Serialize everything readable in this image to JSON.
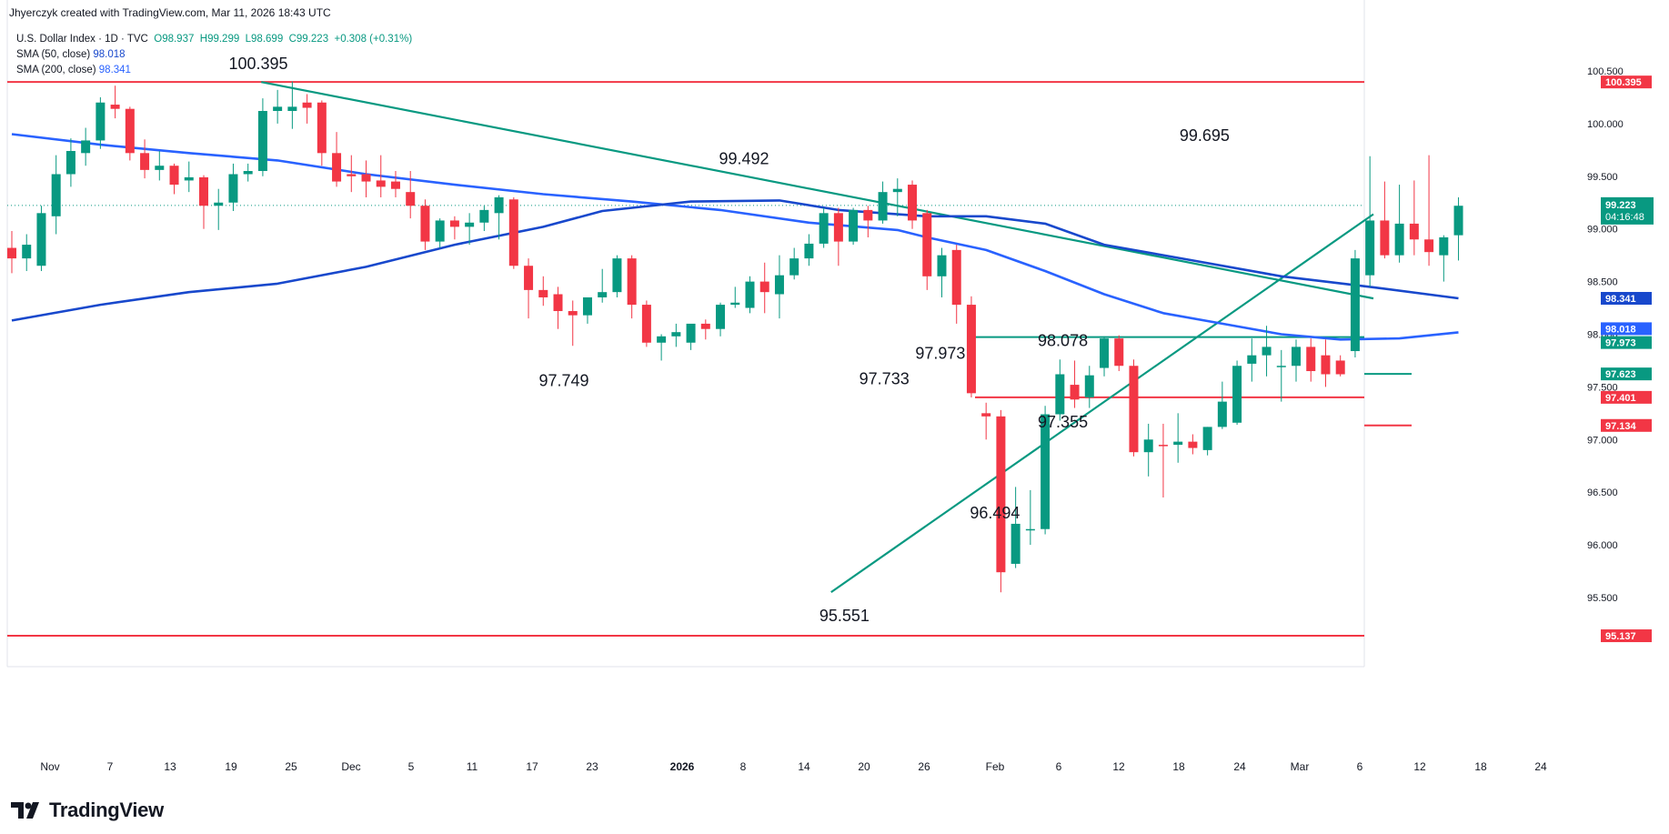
{
  "header": {
    "publish_line": "Jhyerczyk created with TradingView.com, Mar 11, 2026 18:43 UTC"
  },
  "legend": {
    "symbol": "U.S. Dollar Index · 1D · TVC",
    "open": "O98.937",
    "high": "H99.299",
    "low": "L98.699",
    "close": "C99.223",
    "change": "+0.308 (+0.31%)",
    "sma50_label": "SMA (50, close)",
    "sma50_value": "98.018",
    "sma200_label": "SMA (200, close)",
    "sma200_value": "98.341"
  },
  "brand": {
    "name": "TradingView"
  },
  "colors": {
    "up": "#089981",
    "down": "#f23645",
    "sma50": "#2962ff",
    "sma200": "#1848cc",
    "trend": "#089981",
    "resistance": "#f23645"
  },
  "chart_data": {
    "type": "candlestick",
    "title": "",
    "price_axis_ticks": [
      "100.500",
      "100.000",
      "99.500",
      "99.000",
      "98.500",
      "98.000",
      "97.500",
      "97.000",
      "96.500",
      "96.000",
      "95.500"
    ],
    "time_axis_ticks": [
      "Nov",
      "7",
      "13",
      "19",
      "25",
      "Dec",
      "5",
      "11",
      "17",
      "23",
      "2026",
      "8",
      "14",
      "20",
      "26",
      "Feb",
      "6",
      "12",
      "18",
      "24",
      "Mar",
      "6",
      "12",
      "18",
      "24"
    ],
    "last_price": "99.223",
    "countdown": "04:16:48",
    "price_badges": [
      {
        "value": "100.395",
        "color": "#f23645"
      },
      {
        "value": "98.341",
        "color": "#1848cc"
      },
      {
        "value": "98.018",
        "color": "#2962ff"
      },
      {
        "value": "97.973",
        "color": "#089981"
      },
      {
        "value": "97.623",
        "color": "#089981"
      },
      {
        "value": "97.401",
        "color": "#f23645"
      },
      {
        "value": "97.134",
        "color": "#f23645"
      },
      {
        "value": "95.137",
        "color": "#f23645"
      }
    ],
    "annotations": [
      {
        "text": "100.395",
        "value": 100.395
      },
      {
        "text": "99.492",
        "value": 99.492
      },
      {
        "text": "97.749",
        "value": 97.749
      },
      {
        "text": "99.695",
        "value": 99.695
      },
      {
        "text": "97.973",
        "value": 97.973
      },
      {
        "text": "97.733",
        "value": 97.733
      },
      {
        "text": "98.078",
        "value": 98.078
      },
      {
        "text": "97.355",
        "value": 97.355
      },
      {
        "text": "96.494",
        "value": 96.494
      },
      {
        "text": "95.551",
        "value": 95.551
      }
    ],
    "horizontal_levels": [
      {
        "value": 100.395,
        "color": "#f23645"
      },
      {
        "value": 95.137,
        "color": "#f23645"
      },
      {
        "value": 97.973,
        "color": "#089981"
      },
      {
        "value": 97.401,
        "color": "#f23645"
      },
      {
        "value": 97.623,
        "color": "#089981"
      },
      {
        "value": 97.134,
        "color": "#f23645"
      }
    ],
    "candles": [
      {
        "o": 98.82,
        "h": 98.98,
        "l": 98.58,
        "c": 98.72
      },
      {
        "o": 98.72,
        "h": 98.95,
        "l": 98.6,
        "c": 98.85
      },
      {
        "o": 98.65,
        "h": 99.22,
        "l": 98.6,
        "c": 99.15
      },
      {
        "o": 99.12,
        "h": 99.7,
        "l": 98.95,
        "c": 99.52
      },
      {
        "o": 99.52,
        "h": 99.86,
        "l": 99.4,
        "c": 99.74
      },
      {
        "o": 99.72,
        "h": 99.96,
        "l": 99.6,
        "c": 99.84
      },
      {
        "o": 99.84,
        "h": 100.25,
        "l": 99.76,
        "c": 100.2
      },
      {
        "o": 100.18,
        "h": 100.36,
        "l": 100.05,
        "c": 100.14
      },
      {
        "o": 100.14,
        "h": 100.16,
        "l": 99.65,
        "c": 99.72
      },
      {
        "o": 99.72,
        "h": 99.85,
        "l": 99.48,
        "c": 99.56
      },
      {
        "o": 99.56,
        "h": 99.74,
        "l": 99.46,
        "c": 99.6
      },
      {
        "o": 99.6,
        "h": 99.62,
        "l": 99.33,
        "c": 99.42
      },
      {
        "o": 99.46,
        "h": 99.64,
        "l": 99.35,
        "c": 99.49
      },
      {
        "o": 99.49,
        "h": 99.51,
        "l": 99.0,
        "c": 99.22
      },
      {
        "o": 99.22,
        "h": 99.38,
        "l": 98.99,
        "c": 99.25
      },
      {
        "o": 99.25,
        "h": 99.62,
        "l": 99.17,
        "c": 99.52
      },
      {
        "o": 99.52,
        "h": 99.62,
        "l": 99.45,
        "c": 99.55
      },
      {
        "o": 99.55,
        "h": 100.24,
        "l": 99.5,
        "c": 100.12
      },
      {
        "o": 100.12,
        "h": 100.32,
        "l": 100.0,
        "c": 100.16
      },
      {
        "o": 100.12,
        "h": 100.4,
        "l": 99.95,
        "c": 100.16
      },
      {
        "o": 100.2,
        "h": 100.28,
        "l": 100.0,
        "c": 100.15
      },
      {
        "o": 100.2,
        "h": 100.22,
        "l": 99.6,
        "c": 99.72
      },
      {
        "o": 99.72,
        "h": 99.92,
        "l": 99.4,
        "c": 99.45
      },
      {
        "o": 99.52,
        "h": 99.7,
        "l": 99.35,
        "c": 99.5
      },
      {
        "o": 99.52,
        "h": 99.65,
        "l": 99.3,
        "c": 99.45
      },
      {
        "o": 99.46,
        "h": 99.7,
        "l": 99.3,
        "c": 99.4
      },
      {
        "o": 99.45,
        "h": 99.55,
        "l": 99.3,
        "c": 99.38
      },
      {
        "o": 99.35,
        "h": 99.55,
        "l": 99.1,
        "c": 99.22
      },
      {
        "o": 99.22,
        "h": 99.28,
        "l": 98.8,
        "c": 98.88
      },
      {
        "o": 98.88,
        "h": 99.1,
        "l": 98.82,
        "c": 99.08
      },
      {
        "o": 99.08,
        "h": 99.12,
        "l": 98.9,
        "c": 99.02
      },
      {
        "o": 99.02,
        "h": 99.15,
        "l": 98.85,
        "c": 99.06
      },
      {
        "o": 99.06,
        "h": 99.22,
        "l": 98.98,
        "c": 99.18
      },
      {
        "o": 99.15,
        "h": 99.32,
        "l": 98.9,
        "c": 99.3
      },
      {
        "o": 99.28,
        "h": 99.3,
        "l": 98.62,
        "c": 98.65
      },
      {
        "o": 98.65,
        "h": 98.72,
        "l": 98.15,
        "c": 98.42
      },
      {
        "o": 98.42,
        "h": 98.55,
        "l": 98.27,
        "c": 98.35
      },
      {
        "o": 98.38,
        "h": 98.45,
        "l": 98.05,
        "c": 98.22
      },
      {
        "o": 98.22,
        "h": 98.32,
        "l": 97.89,
        "c": 98.18
      },
      {
        "o": 98.18,
        "h": 98.35,
        "l": 98.1,
        "c": 98.35
      },
      {
        "o": 98.35,
        "h": 98.62,
        "l": 98.3,
        "c": 98.4
      },
      {
        "o": 98.4,
        "h": 98.75,
        "l": 98.35,
        "c": 98.72
      },
      {
        "o": 98.72,
        "h": 98.75,
        "l": 98.15,
        "c": 98.28
      },
      {
        "o": 98.28,
        "h": 98.32,
        "l": 97.88,
        "c": 97.92
      },
      {
        "o": 97.92,
        "h": 98.0,
        "l": 97.75,
        "c": 97.98
      },
      {
        "o": 97.98,
        "h": 98.1,
        "l": 97.88,
        "c": 98.02
      },
      {
        "o": 97.92,
        "h": 98.08,
        "l": 97.85,
        "c": 98.1
      },
      {
        "o": 98.1,
        "h": 98.14,
        "l": 97.95,
        "c": 98.05
      },
      {
        "o": 98.05,
        "h": 98.3,
        "l": 97.98,
        "c": 98.28
      },
      {
        "o": 98.28,
        "h": 98.45,
        "l": 98.25,
        "c": 98.3
      },
      {
        "o": 98.25,
        "h": 98.55,
        "l": 98.2,
        "c": 98.5
      },
      {
        "o": 98.5,
        "h": 98.68,
        "l": 98.2,
        "c": 98.4
      },
      {
        "o": 98.38,
        "h": 98.75,
        "l": 98.15,
        "c": 98.56
      },
      {
        "o": 98.56,
        "h": 98.82,
        "l": 98.52,
        "c": 98.72
      },
      {
        "o": 98.72,
        "h": 98.95,
        "l": 98.65,
        "c": 98.86
      },
      {
        "o": 98.86,
        "h": 99.2,
        "l": 98.82,
        "c": 99.15
      },
      {
        "o": 99.15,
        "h": 99.2,
        "l": 98.65,
        "c": 98.88
      },
      {
        "o": 98.88,
        "h": 99.2,
        "l": 98.85,
        "c": 99.18
      },
      {
        "o": 99.18,
        "h": 99.22,
        "l": 98.92,
        "c": 99.08
      },
      {
        "o": 99.08,
        "h": 99.45,
        "l": 99.05,
        "c": 99.35
      },
      {
        "o": 99.35,
        "h": 99.48,
        "l": 99.12,
        "c": 99.38
      },
      {
        "o": 99.42,
        "h": 99.46,
        "l": 99.0,
        "c": 99.08
      },
      {
        "o": 99.15,
        "h": 99.18,
        "l": 98.42,
        "c": 98.55
      },
      {
        "o": 98.55,
        "h": 98.82,
        "l": 98.35,
        "c": 98.75
      },
      {
        "o": 98.8,
        "h": 98.85,
        "l": 98.1,
        "c": 98.28
      },
      {
        "o": 98.28,
        "h": 98.36,
        "l": 97.4,
        "c": 97.44
      },
      {
        "o": 97.25,
        "h": 97.35,
        "l": 97.0,
        "c": 97.22
      },
      {
        "o": 97.22,
        "h": 97.28,
        "l": 95.55,
        "c": 95.74
      },
      {
        "o": 95.82,
        "h": 96.55,
        "l": 95.78,
        "c": 96.2
      },
      {
        "o": 96.15,
        "h": 96.52,
        "l": 96.0,
        "c": 96.15
      },
      {
        "o": 96.15,
        "h": 97.32,
        "l": 96.1,
        "c": 97.24
      },
      {
        "o": 97.24,
        "h": 97.76,
        "l": 97.18,
        "c": 97.62
      },
      {
        "o": 97.52,
        "h": 97.75,
        "l": 97.3,
        "c": 97.38
      },
      {
        "o": 97.4,
        "h": 97.7,
        "l": 97.3,
        "c": 97.61
      },
      {
        "o": 97.68,
        "h": 97.98,
        "l": 97.6,
        "c": 97.96
      },
      {
        "o": 97.96,
        "h": 97.99,
        "l": 97.65,
        "c": 97.7
      },
      {
        "o": 97.7,
        "h": 97.76,
        "l": 96.84,
        "c": 96.88
      },
      {
        "o": 96.88,
        "h": 97.15,
        "l": 96.65,
        "c": 97.0
      },
      {
        "o": 96.95,
        "h": 97.15,
        "l": 96.45,
        "c": 96.94
      },
      {
        "o": 96.95,
        "h": 97.25,
        "l": 96.78,
        "c": 96.98
      },
      {
        "o": 96.98,
        "h": 97.05,
        "l": 96.86,
        "c": 96.92
      },
      {
        "o": 96.9,
        "h": 97.12,
        "l": 96.85,
        "c": 97.12
      },
      {
        "o": 97.12,
        "h": 97.55,
        "l": 97.1,
        "c": 97.36
      },
      {
        "o": 97.16,
        "h": 97.75,
        "l": 97.14,
        "c": 97.7
      },
      {
        "o": 97.72,
        "h": 97.96,
        "l": 97.55,
        "c": 97.8
      },
      {
        "o": 97.8,
        "h": 98.08,
        "l": 97.6,
        "c": 97.88
      },
      {
        "o": 97.7,
        "h": 97.85,
        "l": 97.36,
        "c": 97.7
      },
      {
        "o": 97.7,
        "h": 97.95,
        "l": 97.55,
        "c": 97.88
      },
      {
        "o": 97.88,
        "h": 97.96,
        "l": 97.55,
        "c": 97.65
      },
      {
        "o": 97.8,
        "h": 97.95,
        "l": 97.5,
        "c": 97.62
      },
      {
        "o": 97.75,
        "h": 97.8,
        "l": 97.6,
        "c": 97.62
      },
      {
        "o": 97.84,
        "h": 98.8,
        "l": 97.78,
        "c": 98.72
      },
      {
        "o": 98.56,
        "h": 99.69,
        "l": 98.45,
        "c": 99.08
      },
      {
        "o": 99.08,
        "h": 99.45,
        "l": 98.72,
        "c": 98.75
      },
      {
        "o": 98.75,
        "h": 99.42,
        "l": 98.68,
        "c": 99.05
      },
      {
        "o": 99.05,
        "h": 99.46,
        "l": 98.75,
        "c": 98.9
      },
      {
        "o": 98.9,
        "h": 99.7,
        "l": 98.65,
        "c": 98.78
      },
      {
        "o": 98.75,
        "h": 98.94,
        "l": 98.5,
        "c": 98.92
      },
      {
        "o": 98.94,
        "h": 99.3,
        "l": 98.7,
        "c": 99.22
      }
    ],
    "sma50": [
      [
        0,
        99.9
      ],
      [
        6,
        99.8
      ],
      [
        12,
        99.72
      ],
      [
        18,
        99.65
      ],
      [
        24,
        99.52
      ],
      [
        30,
        99.42
      ],
      [
        36,
        99.33
      ],
      [
        42,
        99.26
      ],
      [
        48,
        99.18
      ],
      [
        54,
        99.06
      ],
      [
        60,
        98.99
      ],
      [
        62,
        98.92
      ],
      [
        66,
        98.8
      ],
      [
        70,
        98.6
      ],
      [
        74,
        98.38
      ],
      [
        78,
        98.2
      ],
      [
        82,
        98.1
      ],
      [
        86,
        98.0
      ],
      [
        90,
        97.95
      ],
      [
        94,
        97.96
      ],
      [
        98,
        98.018
      ]
    ],
    "sma200": [
      [
        0,
        98.13
      ],
      [
        6,
        98.28
      ],
      [
        12,
        98.4
      ],
      [
        18,
        98.48
      ],
      [
        24,
        98.64
      ],
      [
        30,
        98.85
      ],
      [
        36,
        99.02
      ],
      [
        40,
        99.17
      ],
      [
        46,
        99.26
      ],
      [
        52,
        99.27
      ],
      [
        56,
        99.18
      ],
      [
        62,
        99.12
      ],
      [
        66,
        99.12
      ],
      [
        70,
        99.05
      ],
      [
        74,
        98.85
      ],
      [
        80,
        98.7
      ],
      [
        86,
        98.55
      ],
      [
        92,
        98.45
      ],
      [
        98,
        98.341
      ]
    ]
  }
}
